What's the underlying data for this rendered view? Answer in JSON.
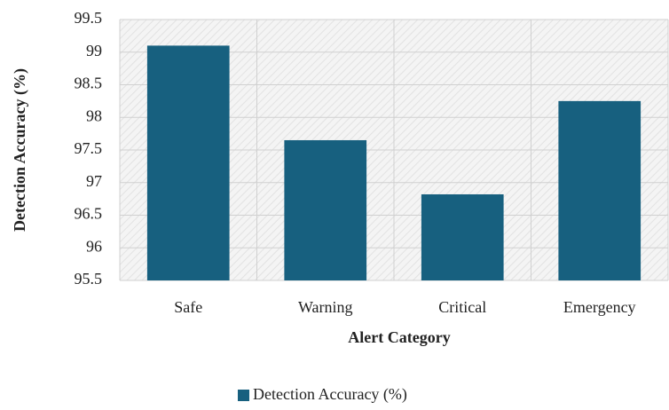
{
  "chart_data": {
    "type": "bar",
    "categories": [
      "Safe",
      "Warning",
      "Critical",
      "Emergency"
    ],
    "series": [
      {
        "name": "Detection Accuracy (%)",
        "color": "#17607f",
        "values": [
          99.1,
          97.65,
          96.82,
          98.25
        ]
      }
    ],
    "x_label": "Alert Category",
    "y_label": "Detection Accuracy (%)",
    "ylim": [
      95.5,
      99.5
    ],
    "yticks": [
      95.5,
      96,
      96.5,
      97,
      97.5,
      98,
      98.5,
      99,
      99.5
    ],
    "grid": true,
    "legend": "bottom"
  }
}
